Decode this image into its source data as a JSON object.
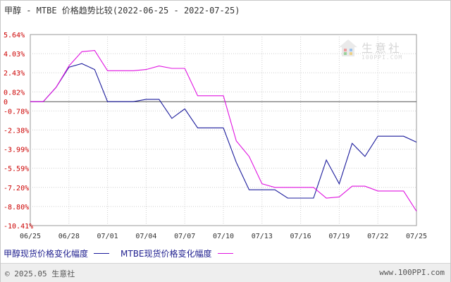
{
  "title": {
    "prefix": "甲醇 - MTBE 价格趋势比较",
    "range": "(2022-06-25 - 2022-07-25)"
  },
  "legend": {
    "series1": "甲醇现货价格变化幅度",
    "series2": "MTBE现货价格变化幅度"
  },
  "footer": {
    "copyright": "© 2025.05 生意社",
    "site": "www.100PPI.com"
  },
  "watermark": {
    "name": "生意社",
    "url": "100PPI.COM"
  },
  "colors": {
    "series1": "#1b1b9c",
    "series2": "#e014e0",
    "grid": "#cfcfcf",
    "zero": "#555555",
    "ytick": "#cc0000",
    "xtick": "#333333"
  },
  "chart_data": {
    "type": "line",
    "x": [
      "06/25",
      "06/26",
      "06/27",
      "06/28",
      "06/29",
      "06/30",
      "07/01",
      "07/02",
      "07/03",
      "07/04",
      "07/05",
      "07/06",
      "07/07",
      "07/08",
      "07/09",
      "07/10",
      "07/11",
      "07/12",
      "07/13",
      "07/14",
      "07/15",
      "07/16",
      "07/17",
      "07/18",
      "07/19",
      "07/20",
      "07/21",
      "07/22",
      "07/23",
      "07/24",
      "07/25"
    ],
    "xticks": [
      "06/25",
      "06/28",
      "07/01",
      "07/04",
      "07/07",
      "07/10",
      "07/13",
      "07/16",
      "07/19",
      "07/22",
      "07/25"
    ],
    "yticks": [
      5.64,
      4.03,
      2.43,
      0.82,
      0,
      -0.78,
      -2.38,
      -3.99,
      -5.59,
      -7.2,
      -8.8,
      -10.41
    ],
    "ytick_labels": [
      "5.64%",
      "4.03%",
      "2.43%",
      "0.82%",
      "0",
      "-0.78%",
      "-2.38%",
      "-3.99%",
      "-5.59%",
      "-7.20%",
      "-8.80%",
      "-10.41%"
    ],
    "ylim": [
      -10.41,
      5.64
    ],
    "grid": true,
    "legend_position": "bottom",
    "series": [
      {
        "name": "甲醇现货价格变化幅度",
        "values": [
          0,
          0,
          1.2,
          2.9,
          3.2,
          2.7,
          0,
          0,
          0,
          0.2,
          0.2,
          -1.4,
          -0.6,
          -2.2,
          -2.2,
          -2.2,
          -5.1,
          -7.4,
          -7.4,
          -7.4,
          -8.1,
          -8.1,
          -8.1,
          -4.9,
          -6.9,
          -3.5,
          -4.6,
          -2.9,
          -2.9,
          -2.9,
          -3.4
        ]
      },
      {
        "name": "MTBE现货价格变化幅度",
        "values": [
          0,
          0,
          1.2,
          3.0,
          4.2,
          4.3,
          2.6,
          2.6,
          2.6,
          2.7,
          3.0,
          2.8,
          2.8,
          0.5,
          0.5,
          0.5,
          -3.3,
          -4.6,
          -6.9,
          -7.2,
          -7.2,
          -7.2,
          -7.2,
          -8.1,
          -8.0,
          -7.1,
          -7.1,
          -7.5,
          -7.5,
          -7.5,
          -9.2
        ]
      }
    ]
  }
}
